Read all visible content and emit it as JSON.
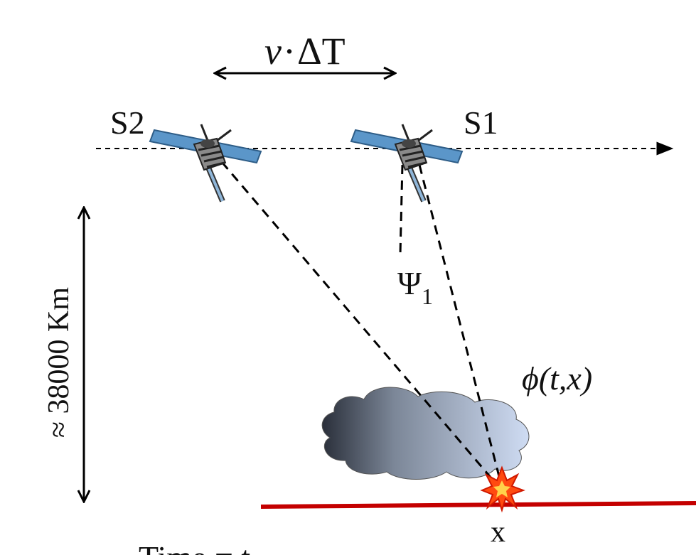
{
  "labels": {
    "baseline_v": "v",
    "baseline_dot": "·",
    "baseline_delta_t": "ΔT",
    "satellite_2": "S2",
    "satellite_1": "S1",
    "altitude": "≈ 38000 Km",
    "angle_psi": "Ψ",
    "angle_psi_sub": "1",
    "field_phi": "ϕ",
    "field_args": "(t,x)",
    "source_location": "x",
    "time_caption": "Time = t"
  },
  "colors": {
    "ground_line": "#c40000",
    "event_star": "#ff4a10",
    "event_star_outline": "#d01800",
    "solar_panel": "#5b96c9",
    "cloud_dark": "#2a2f3a",
    "cloud_light": "#cfdcf3"
  },
  "icons": {
    "satellite": "satellite-icon",
    "cloud": "cloud-icon",
    "event": "lightning-event-icon"
  }
}
